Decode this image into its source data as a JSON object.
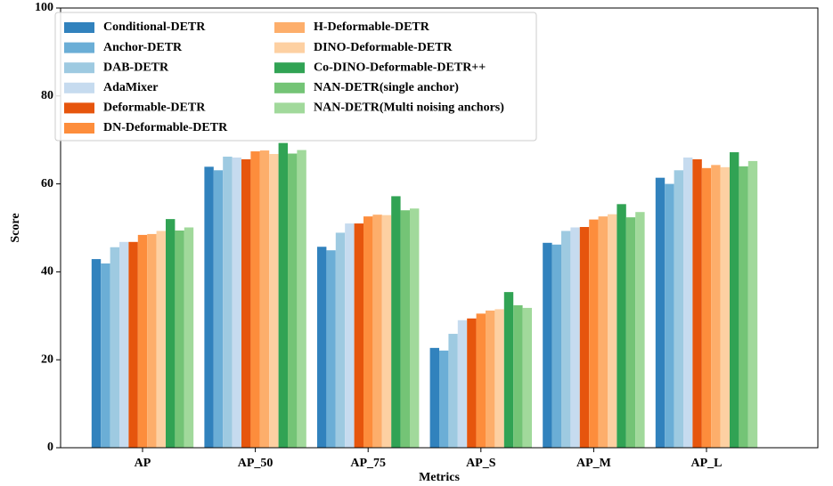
{
  "chart_data": {
    "type": "bar",
    "x_label": "Metrics",
    "y_label": "Score",
    "categories": [
      "AP",
      "AP_50",
      "AP_75",
      "AP_S",
      "AP_M",
      "AP_L"
    ],
    "series": [
      {
        "name": "Conditional-DETR",
        "color": "#3182bd",
        "values": [
          42.9,
          63.9,
          45.7,
          22.7,
          46.6,
          61.4
        ]
      },
      {
        "name": "Anchor-DETR",
        "color": "#6baed6",
        "values": [
          41.9,
          63.1,
          44.9,
          22.1,
          46.2,
          60.0
        ]
      },
      {
        "name": "DAB-DETR",
        "color": "#9ecae1",
        "values": [
          45.6,
          66.2,
          48.9,
          25.9,
          49.3,
          63.1
        ]
      },
      {
        "name": "AdaMixer",
        "color": "#c6dbef",
        "values": [
          46.8,
          66.0,
          51.0,
          29.0,
          50.1,
          66.0
        ]
      },
      {
        "name": "Deformable-DETR",
        "color": "#e6550d",
        "values": [
          46.8,
          65.6,
          51.0,
          29.4,
          50.2,
          65.6
        ]
      },
      {
        "name": "DN-Deformable-DETR",
        "color": "#fd8d3c",
        "values": [
          48.4,
          67.4,
          52.6,
          30.5,
          51.9,
          63.6
        ]
      },
      {
        "name": "H-Deformable-DETR",
        "color": "#fdae6b",
        "values": [
          48.6,
          67.6,
          53.0,
          31.2,
          52.6,
          64.3
        ]
      },
      {
        "name": "DINO-Deformable-DETR",
        "color": "#fdd0a2",
        "values": [
          49.3,
          66.8,
          52.9,
          31.5,
          53.1,
          63.8
        ]
      },
      {
        "name": "Co-DINO-Deformable-DETR++",
        "color": "#31a354",
        "values": [
          52.0,
          69.3,
          57.2,
          35.4,
          55.4,
          67.2
        ]
      },
      {
        "name": "NAN-DETR(single anchor)",
        "color": "#74c476",
        "values": [
          49.4,
          66.9,
          54.0,
          32.4,
          52.4,
          64.0
        ]
      },
      {
        "name": "NAN-DETR(Multi noising anchors)",
        "color": "#a1d99b",
        "values": [
          50.1,
          67.7,
          54.4,
          31.8,
          53.6,
          65.2
        ]
      }
    ],
    "ylim": [
      0,
      100
    ],
    "yticks": [
      0,
      20,
      40,
      60,
      80,
      100
    ],
    "grid": false,
    "legend": "upper left"
  }
}
